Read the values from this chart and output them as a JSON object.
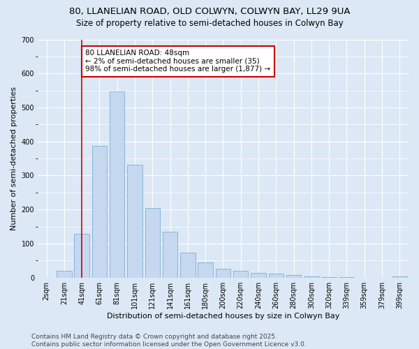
{
  "title_line1": "80, LLANELIAN ROAD, OLD COLWYN, COLWYN BAY, LL29 9UA",
  "title_line2": "Size of property relative to semi-detached houses in Colwyn Bay",
  "xlabel": "Distribution of semi-detached houses by size in Colwyn Bay",
  "ylabel": "Number of semi-detached properties",
  "categories": [
    "2sqm",
    "21sqm",
    "41sqm",
    "61sqm",
    "81sqm",
    "101sqm",
    "121sqm",
    "141sqm",
    "161sqm",
    "180sqm",
    "200sqm",
    "220sqm",
    "240sqm",
    "260sqm",
    "280sqm",
    "300sqm",
    "320sqm",
    "339sqm",
    "359sqm",
    "379sqm",
    "399sqm"
  ],
  "values": [
    0,
    20,
    128,
    388,
    548,
    332,
    204,
    134,
    73,
    45,
    26,
    20,
    14,
    11,
    8,
    3,
    1,
    1,
    0,
    0,
    4
  ],
  "bar_color": "#c5d8f0",
  "bar_edge_color": "#7bafd4",
  "vline_x": 2,
  "vline_color": "#cc0000",
  "annotation_title": "80 LLANELIAN ROAD: 48sqm",
  "annotation_line2": "← 2% of semi-detached houses are smaller (35)",
  "annotation_line3": "98% of semi-detached houses are larger (1,877) →",
  "annotation_box_facecolor": "#ffffff",
  "annotation_box_edgecolor": "#cc0000",
  "ylim": [
    0,
    700
  ],
  "yticks": [
    0,
    100,
    200,
    300,
    400,
    500,
    600,
    700
  ],
  "footer_line1": "Contains HM Land Registry data © Crown copyright and database right 2025.",
  "footer_line2": "Contains public sector information licensed under the Open Government Licence v3.0.",
  "bg_color": "#dce8f5",
  "plot_bg_color": "#dce8f5",
  "title_fontsize": 9.5,
  "subtitle_fontsize": 8.5,
  "axis_label_fontsize": 8,
  "tick_fontsize": 7,
  "annotation_fontsize": 7.5,
  "footer_fontsize": 6.5
}
